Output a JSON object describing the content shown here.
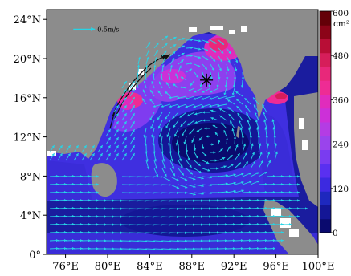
{
  "map": {
    "lon_range": [
      74.2,
      100
    ],
    "lat_range": [
      0,
      25
    ],
    "x_ticks": [
      {
        "value": 76,
        "label": "76°E"
      },
      {
        "value": 80,
        "label": "80°E"
      },
      {
        "value": 84,
        "label": "84°E"
      },
      {
        "value": 88,
        "label": "88°E"
      },
      {
        "value": 92,
        "label": "92°E"
      },
      {
        "value": 96,
        "label": "96°E"
      },
      {
        "value": 100,
        "label": "100°E"
      }
    ],
    "y_ticks": [
      {
        "value": 24,
        "label": "24°N"
      },
      {
        "value": 20,
        "label": "20°N"
      },
      {
        "value": 16,
        "label": "16°N"
      },
      {
        "value": 12,
        "label": "12°N"
      },
      {
        "value": 8,
        "label": "8°N"
      },
      {
        "value": 4,
        "label": "4°N"
      },
      {
        "value": 0,
        "label": "0°"
      }
    ],
    "reference_vector": {
      "label": "0.5m/s",
      "lon": 78.8,
      "lat": 23.0
    },
    "marker": {
      "symbol": "star",
      "lon": 89.4,
      "lat": 17.8
    },
    "colors": {
      "land": "#8c8c8c",
      "vectors": "#27d4e6",
      "marker": "#000000"
    }
  },
  "colorbar": {
    "unit_label": "cm²",
    "ticks": [
      {
        "value": 600,
        "label": "600"
      },
      {
        "value": 480,
        "label": "480"
      },
      {
        "value": 360,
        "label": "360"
      },
      {
        "value": 240,
        "label": "240"
      },
      {
        "value": 120,
        "label": "120"
      },
      {
        "value": 0,
        "label": "0"
      }
    ],
    "range": [
      0,
      600
    ],
    "colors": [
      "#0a0a6e",
      "#141696",
      "#1e28be",
      "#3c2ae0",
      "#5a30f0",
      "#7a3cf0",
      "#9a44ec",
      "#b43ce4",
      "#cc30d8",
      "#e02cbc",
      "#ee2c94",
      "#e8287a",
      "#d61e5a",
      "#b80e36",
      "#8c0418",
      "#640008"
    ]
  }
}
